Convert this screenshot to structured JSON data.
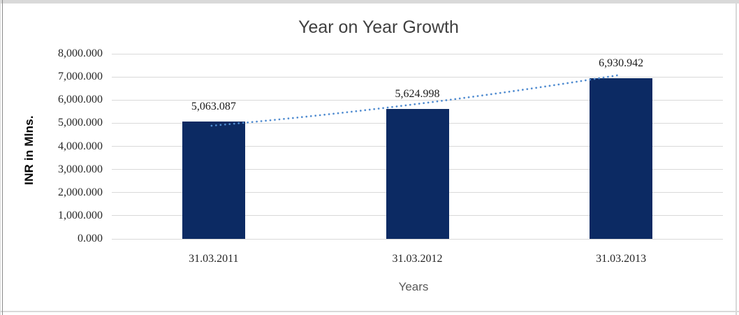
{
  "window": {
    "background": "#FFFFFF",
    "frame_color": "#D9D9D9"
  },
  "chart_data": {
    "type": "bar",
    "title": "Year on Year Growth",
    "xlabel": "Years",
    "ylabel": "INR in Mlns.",
    "categories": [
      "31.03.2011",
      "31.03.2012",
      "31.03.2013"
    ],
    "values": [
      5063.087,
      5624.998,
      6930.942
    ],
    "data_labels": [
      "5,063.087",
      "5,624.998",
      "6,930.942"
    ],
    "ylim": [
      0,
      8000
    ],
    "y_tick_step": 1000,
    "y_tick_labels": [
      "0.000",
      "1,000.000",
      "2,000.000",
      "3,000.000",
      "4,000.000",
      "5,000.000",
      "6,000.000",
      "7,000.000",
      "8,000.000"
    ],
    "grid": true,
    "legend": "none",
    "bar_color": "#0C2A63",
    "gridline_color": "#D9D9D9",
    "title_color": "#404040",
    "axis_title_color": "#595959",
    "tick_label_color": "#262626",
    "trendline": {
      "style": "dotted",
      "color": "#4F8BD0",
      "values_at_categories": [
        4890,
        5830,
        7095
      ]
    }
  }
}
